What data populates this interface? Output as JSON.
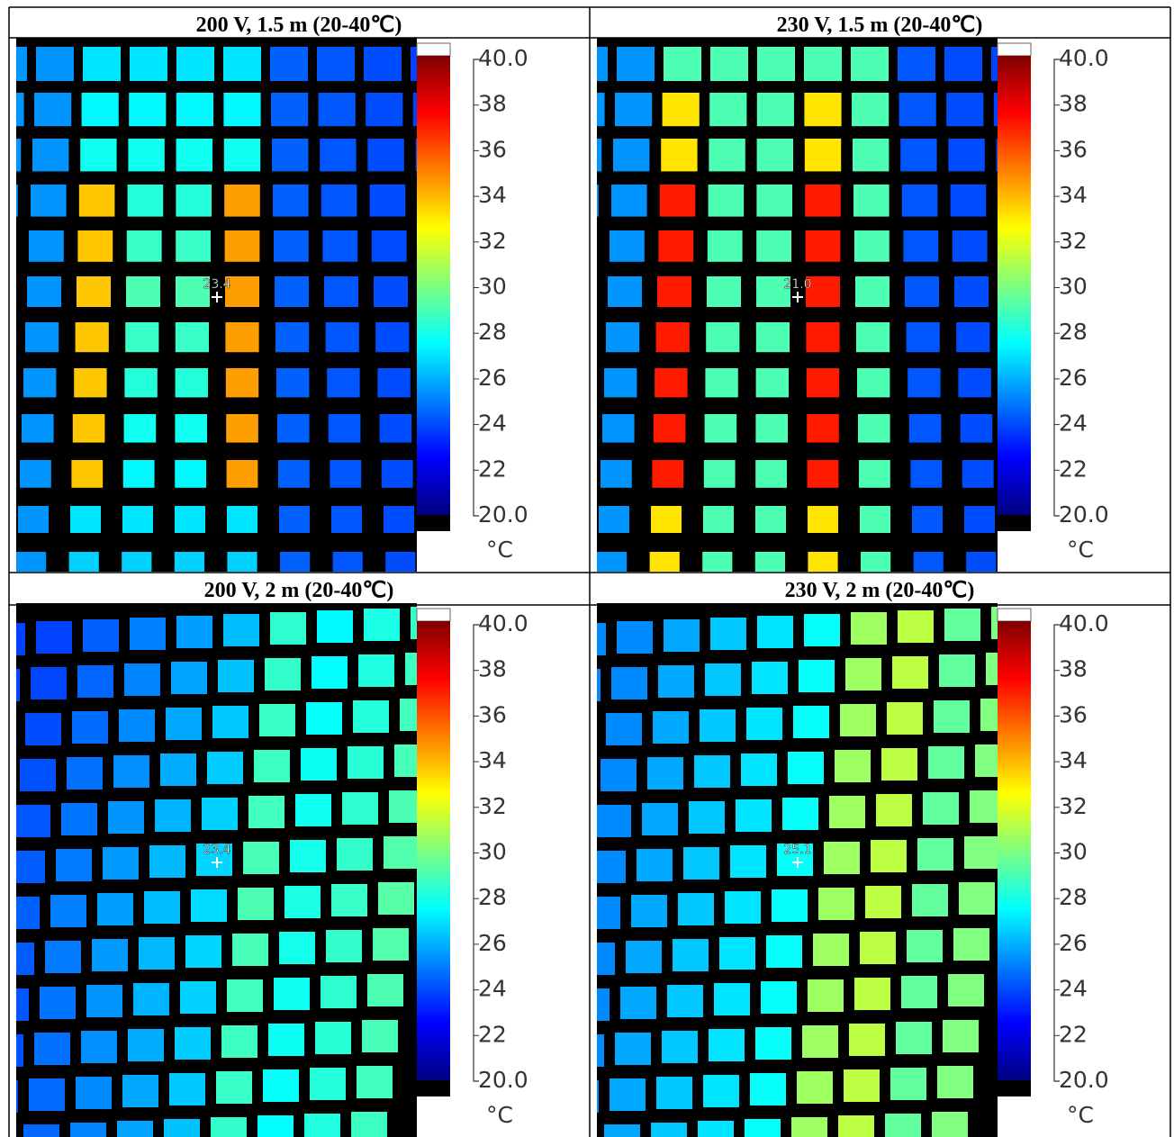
{
  "panels": [
    {
      "title": "200 V, 1.5 m (20-40℃)",
      "spot_reading": "23.4",
      "colorbar": {
        "ticks": [
          "40.0",
          "38",
          "36",
          "34",
          "32",
          "30",
          "28",
          "26",
          "24",
          "22",
          "20.0"
        ],
        "unit": "°C"
      }
    },
    {
      "title": "230 V, 1.5 m (20-40℃)",
      "spot_reading": "21.0",
      "colorbar": {
        "ticks": [
          "40.0",
          "38",
          "36",
          "34",
          "32",
          "30",
          "28",
          "26",
          "24",
          "22",
          "20.0"
        ],
        "unit": "°C"
      }
    },
    {
      "title": "200 V, 2 m (20-40℃)",
      "spot_reading": "23.4",
      "colorbar": {
        "ticks": [
          "40.0",
          "38",
          "36",
          "34",
          "32",
          "30",
          "28",
          "26",
          "24",
          "22",
          "20.0"
        ],
        "unit": "°C"
      }
    },
    {
      "title": "230 V, 2 m (20-40℃)",
      "spot_reading": "25.1",
      "colorbar": {
        "ticks": [
          "40.0",
          "38",
          "36",
          "34",
          "32",
          "30",
          "28",
          "26",
          "24",
          "22",
          "20.0"
        ],
        "unit": "°C"
      }
    }
  ]
}
